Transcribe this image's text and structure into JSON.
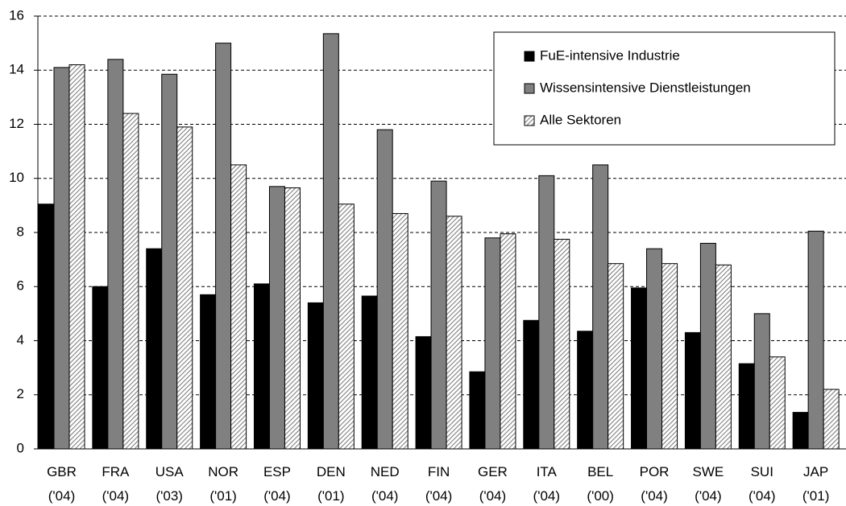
{
  "chart_data": {
    "type": "bar",
    "categories": [
      "GBR ('04)",
      "FRA ('04)",
      "USA ('03)",
      "NOR ('01)",
      "ESP ('04)",
      "DEN ('01)",
      "NED ('04)",
      "FIN ('04)",
      "GER ('04)",
      "ITA ('04)",
      "BEL ('00)",
      "POR ('04)",
      "SWE ('04)",
      "SUI ('04)",
      "JAP ('01)"
    ],
    "series": [
      {
        "name": "FuE-intensive Industrie",
        "color": "#000000",
        "values": [
          9.05,
          6.0,
          7.4,
          5.7,
          6.1,
          5.4,
          5.65,
          4.15,
          2.85,
          4.75,
          4.35,
          5.95,
          4.3,
          3.15,
          1.35
        ]
      },
      {
        "name": "Wissensintensive Dienstleistungen",
        "color": "#808080",
        "values": [
          14.1,
          14.4,
          13.85,
          15.0,
          9.7,
          15.35,
          11.8,
          9.9,
          7.8,
          10.1,
          10.5,
          7.4,
          7.6,
          5.0,
          8.05
        ]
      },
      {
        "name": "Alle Sektoren",
        "color": "#808080",
        "hatch": true,
        "values": [
          14.2,
          12.4,
          11.9,
          10.5,
          9.65,
          9.05,
          8.7,
          8.6,
          7.95,
          7.75,
          6.85,
          6.85,
          6.8,
          3.4,
          2.2
        ]
      }
    ],
    "ylim": [
      0,
      16
    ],
    "yticks": [
      0,
      2,
      4,
      6,
      8,
      10,
      12,
      14,
      16
    ],
    "grid": true
  }
}
